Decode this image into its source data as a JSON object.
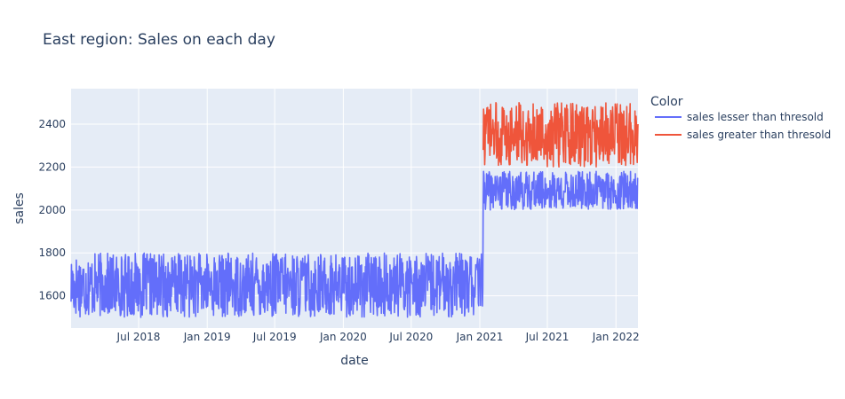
{
  "chart_data": {
    "type": "line",
    "title": "East region: Sales on each day",
    "xlabel": "date",
    "ylabel": "sales",
    "x_range": [
      "2018-01-01",
      "2022-03-01"
    ],
    "ylim": [
      1450,
      2565
    ],
    "x_ticks": [
      {
        "date": "2018-07-01",
        "label": "Jul 2018"
      },
      {
        "date": "2019-01-01",
        "label": "Jan 2019"
      },
      {
        "date": "2019-07-01",
        "label": "Jul 2019"
      },
      {
        "date": "2020-01-01",
        "label": "Jan 2020"
      },
      {
        "date": "2020-07-01",
        "label": "Jul 2020"
      },
      {
        "date": "2021-01-01",
        "label": "Jan 2021"
      },
      {
        "date": "2021-07-01",
        "label": "Jul 2021"
      },
      {
        "date": "2022-01-01",
        "label": "Jan 2022"
      }
    ],
    "y_ticks": [
      1600,
      1800,
      2000,
      2200,
      2400
    ],
    "grid": true,
    "legend": {
      "title": "Color",
      "placement": "right"
    },
    "background": "#E5ECF6",
    "series": [
      {
        "name": "sales lesser than thresold",
        "color": "#636EFA",
        "segments": [
          {
            "start": "2018-01-01",
            "end": "2021-01-09",
            "min": 1500,
            "max": 1800,
            "seed": 17
          },
          {
            "start": "2021-01-10",
            "end": "2022-03-01",
            "min": 2000,
            "max": 2180,
            "seed": 41
          }
        ]
      },
      {
        "name": "sales greater than thresold",
        "color": "#EF553B",
        "segments": [
          {
            "start": "2021-01-10",
            "end": "2022-03-01",
            "min": 2200,
            "max": 2500,
            "seed": 73
          }
        ]
      }
    ]
  }
}
